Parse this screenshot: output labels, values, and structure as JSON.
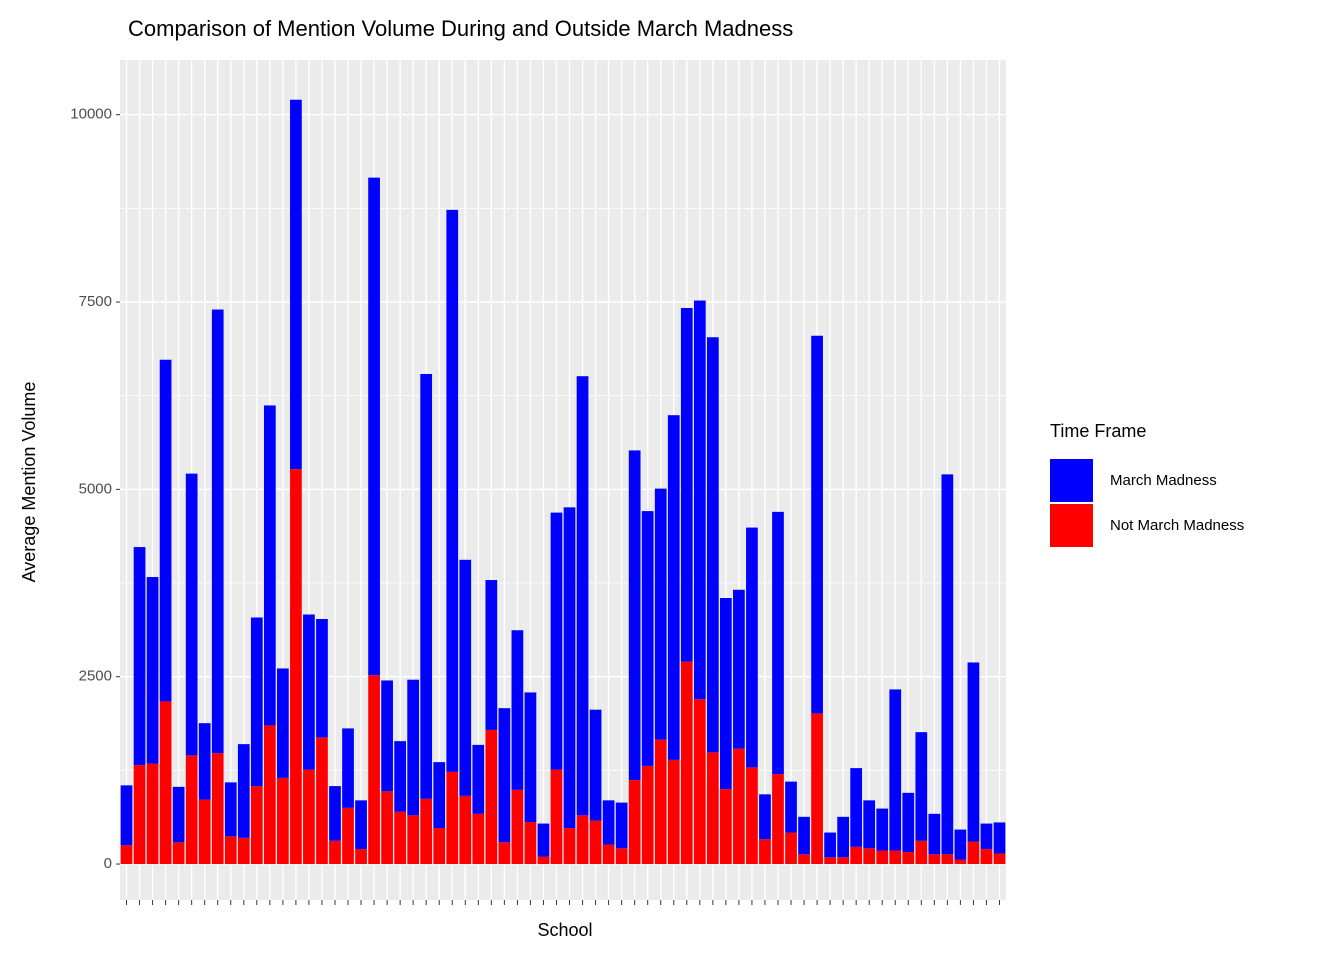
{
  "chart_data": {
    "type": "bar",
    "stacked": true,
    "title": "Comparison of Mention Volume During and Outside March Madness",
    "x_label": "School",
    "y_label": "Average Mention Volume",
    "legend_title": "Time Frame",
    "legend_position": "right",
    "grid": true,
    "categories": [
      null,
      null,
      null,
      null,
      null,
      null,
      null,
      null,
      null,
      null,
      null,
      null,
      null,
      null,
      null,
      null,
      null,
      null,
      null,
      null,
      null,
      null,
      null,
      null,
      null,
      null,
      null,
      null,
      null,
      null,
      null,
      null,
      null,
      null,
      null,
      null,
      null,
      null,
      null,
      null,
      null,
      null,
      null,
      null,
      null,
      null,
      null,
      null,
      null,
      null,
      null,
      null,
      null,
      null,
      null,
      null,
      null,
      null,
      null,
      null,
      null,
      null,
      null,
      null,
      null,
      null,
      null,
      null
    ],
    "series": [
      {
        "name": "March Madness",
        "color": "#0000ff",
        "values": [
          800,
          2910,
          2490,
          4560,
          740,
          3760,
          1020,
          5920,
          720,
          1250,
          2250,
          4270,
          1460,
          4930,
          2070,
          1580,
          730,
          1060,
          650,
          6640,
          1480,
          940,
          1810,
          5670,
          880,
          7500,
          3150,
          920,
          2000,
          1790,
          2130,
          1730,
          440,
          3430,
          4280,
          5860,
          1480,
          590,
          610,
          4400,
          3400,
          3350,
          4600,
          4720,
          5320,
          5540,
          2550,
          2120,
          3200,
          600,
          3500,
          680,
          500,
          5040,
          330,
          540,
          1050,
          640,
          560,
          2150,
          790,
          1450,
          540,
          5070,
          400,
          2390,
          340,
          415
        ]
      },
      {
        "name": "Not March Madness",
        "color": "#ff0000",
        "values": [
          250,
          1320,
          1340,
          2170,
          290,
          1450,
          860,
          1480,
          370,
          350,
          1040,
          1850,
          1150,
          5270,
          1260,
          1690,
          310,
          750,
          200,
          2520,
          970,
          700,
          650,
          870,
          480,
          1230,
          910,
          670,
          1790,
          290,
          990,
          560,
          100,
          1260,
          480,
          650,
          580,
          260,
          210,
          1120,
          1310,
          1660,
          1390,
          2700,
          2200,
          1490,
          1000,
          1540,
          1290,
          330,
          1200,
          420,
          130,
          2010,
          90,
          90,
          230,
          210,
          180,
          180,
          160,
          310,
          130,
          130,
          60,
          300,
          200,
          140
        ]
      }
    ],
    "ylim": [
      -480,
      10730
    ],
    "yticks": [
      0,
      2500,
      5000,
      7500,
      10000
    ]
  }
}
